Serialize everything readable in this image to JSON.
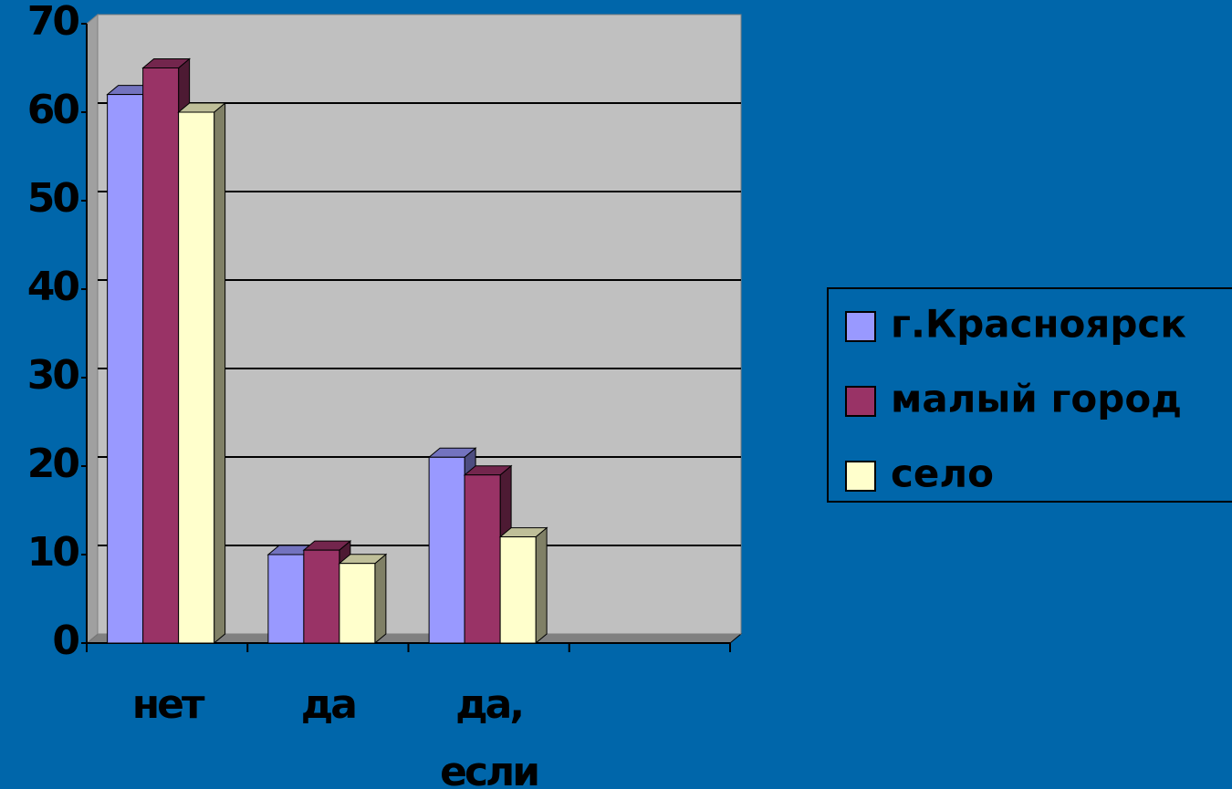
{
  "chart_data": {
    "type": "bar3d",
    "categories": [
      "нет",
      "да",
      "да, если",
      null
    ],
    "series": [
      {
        "name": "г.Красноярск",
        "color": "#9999ff",
        "values": [
          62,
          10,
          21,
          null
        ]
      },
      {
        "name": "малый город",
        "color": "#993366",
        "values": [
          65,
          10.5,
          19,
          null
        ]
      },
      {
        "name": "село",
        "color": "#ffffcc",
        "values": [
          60,
          9,
          12,
          null
        ]
      }
    ],
    "ylim": [
      0,
      70
    ],
    "yticks": [
      0,
      10,
      20,
      30,
      40,
      50,
      60,
      70
    ],
    "grid": true,
    "legend": "right"
  }
}
